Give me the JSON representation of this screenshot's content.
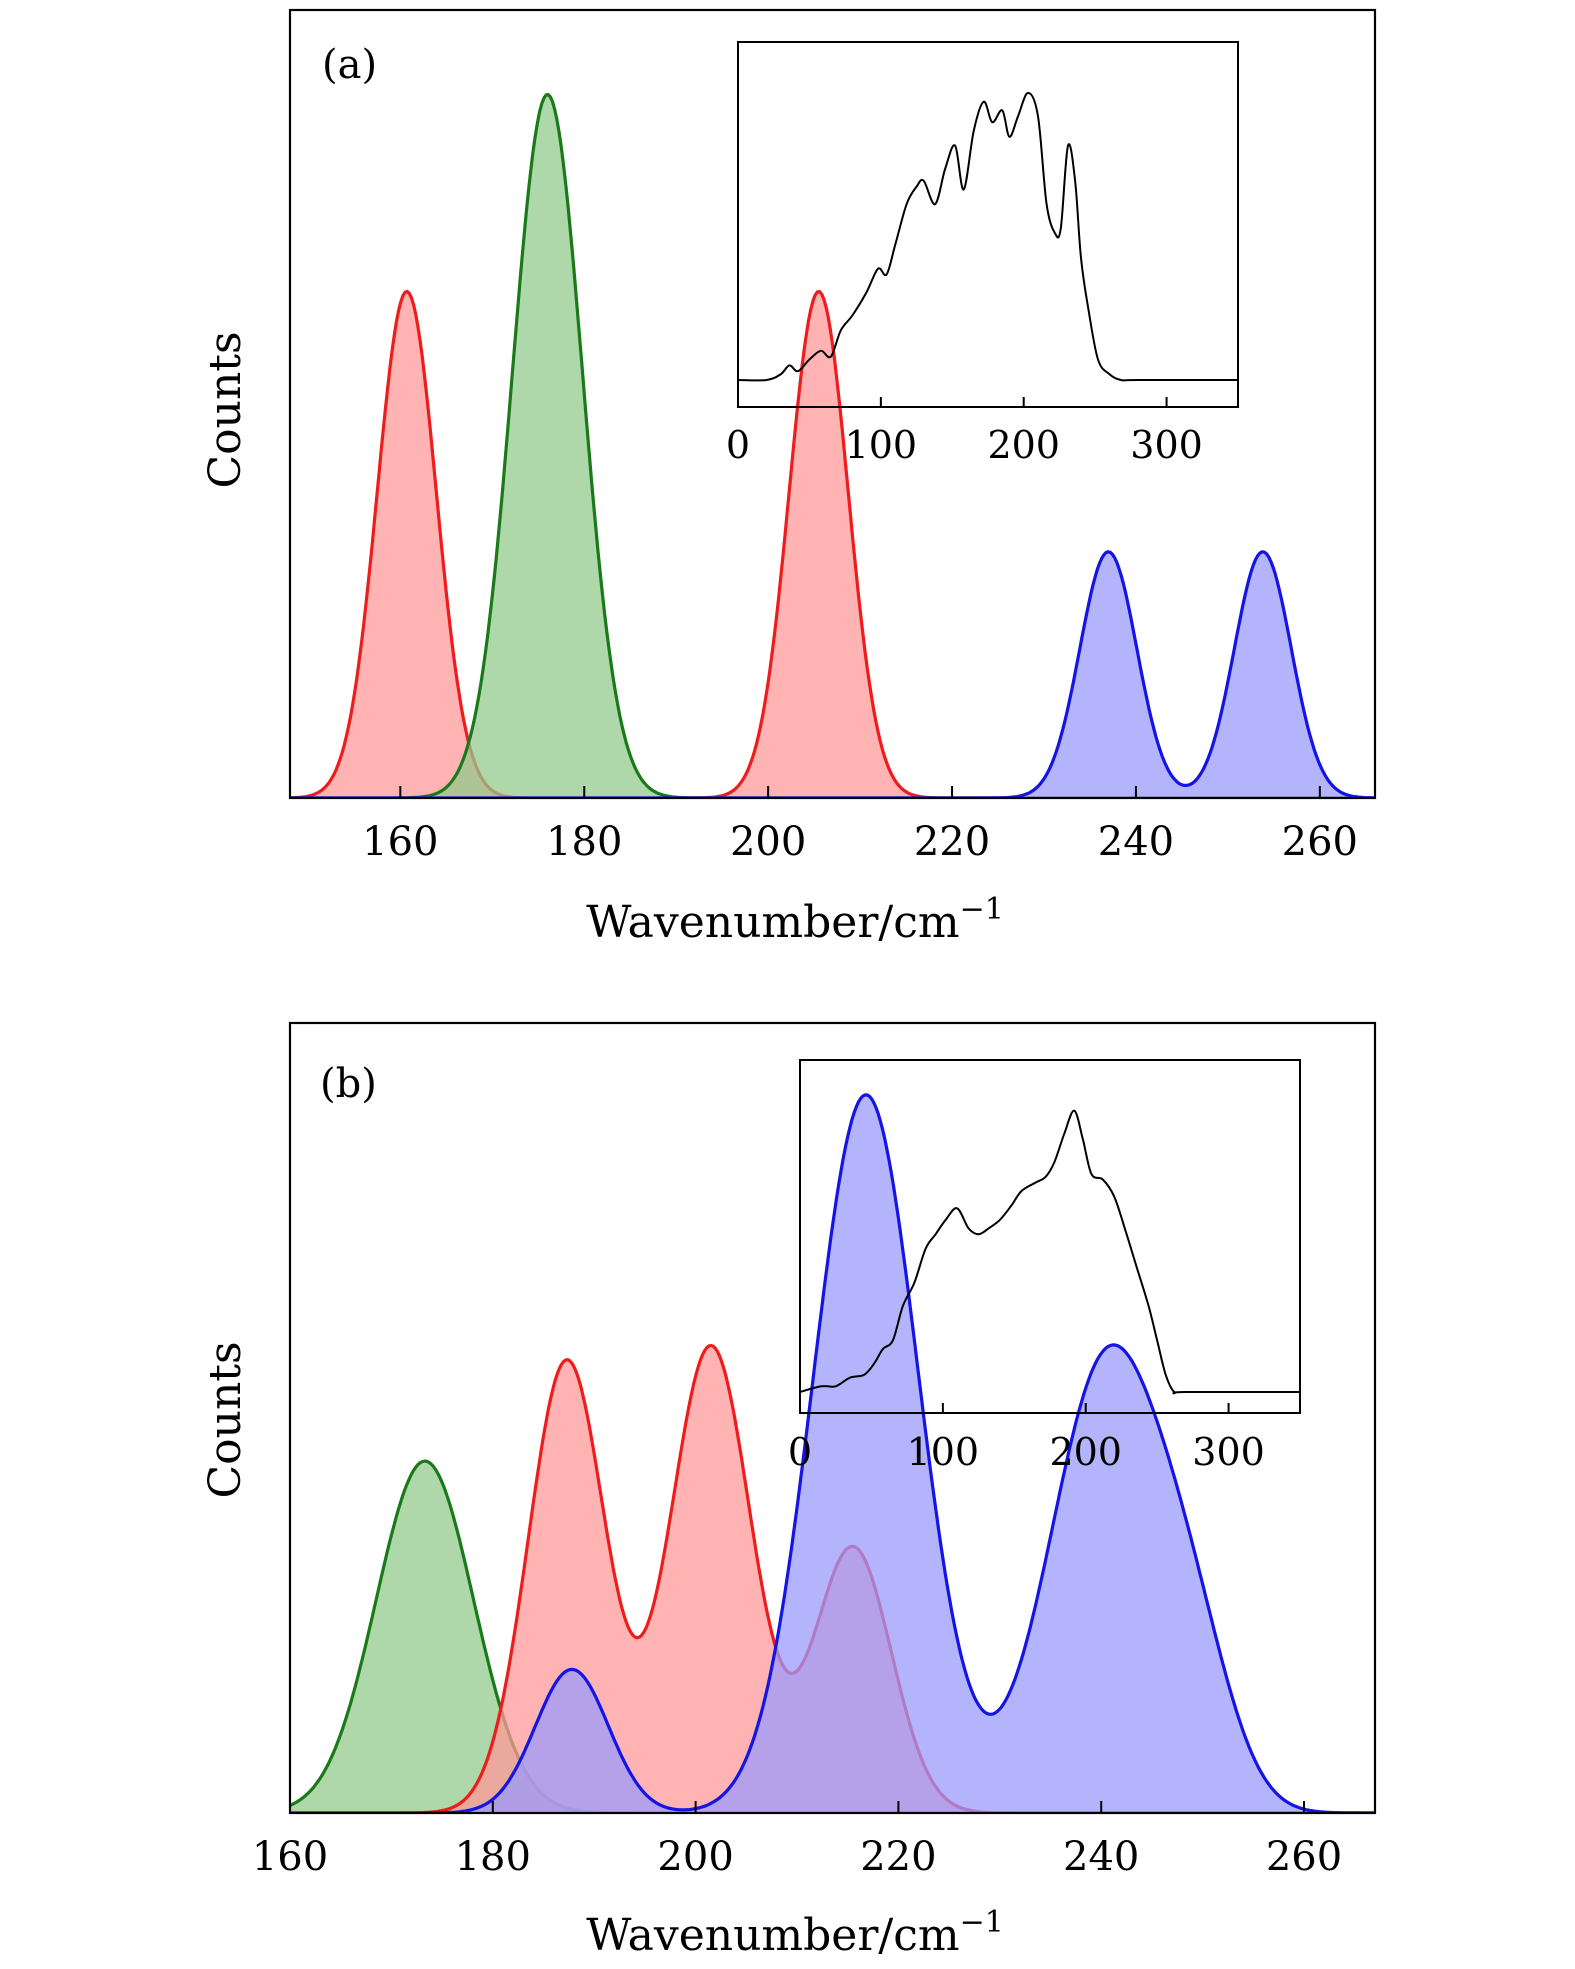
{
  "colors": {
    "red": "#ee1c1c",
    "red_fill": "#ff9a9a",
    "green": "#1a7a1a",
    "green_fill": "#93ca8e",
    "blue": "#1414e6",
    "blue_fill": "#9b9bfb",
    "axis": "#000000"
  },
  "chart_data": [
    {
      "type": "area",
      "panel_label": "(a)",
      "xlabel_main": "Wavenumber/cm",
      "xlabel_sup": "−1",
      "ylabel": "Counts",
      "xlim": [
        148,
        266
      ],
      "ylim": [
        0,
        1.12
      ],
      "xticks": [
        160,
        180,
        200,
        220,
        240,
        260
      ],
      "series": [
        {
          "color": "red",
          "peaks": [
            {
              "center": 160.7,
              "height": 0.72,
              "sigma": 3.2
            },
            {
              "center": 205.5,
              "height": 0.72,
              "sigma": 3.2
            }
          ]
        },
        {
          "color": "green",
          "peaks": [
            {
              "center": 176.0,
              "height": 1.0,
              "sigma": 3.8
            }
          ]
        },
        {
          "color": "blue",
          "peaks": [
            {
              "center": 237.0,
              "height": 0.35,
              "sigma": 3.1
            },
            {
              "center": 253.8,
              "height": 0.35,
              "sigma": 3.1
            }
          ]
        }
      ],
      "inset": {
        "type": "line",
        "xlim": [
          0,
          350
        ],
        "ylim": [
          0,
          1.1
        ],
        "xticks": [
          0,
          100,
          200,
          300
        ],
        "x": [
          0,
          20,
          30,
          36,
          42,
          50,
          58,
          65,
          72,
          80,
          90,
          98,
          104,
          110,
          118,
          125,
          130,
          138,
          145,
          152,
          158,
          165,
          172,
          178,
          185,
          190,
          196,
          203,
          210,
          216,
          222,
          226,
          231,
          236,
          240,
          245,
          252,
          260,
          268,
          280,
          350
        ],
        "y": [
          0.0,
          0.0,
          0.02,
          0.05,
          0.03,
          0.07,
          0.1,
          0.08,
          0.17,
          0.22,
          0.3,
          0.38,
          0.36,
          0.46,
          0.6,
          0.66,
          0.68,
          0.6,
          0.72,
          0.8,
          0.65,
          0.85,
          0.95,
          0.88,
          0.92,
          0.83,
          0.9,
          0.98,
          0.9,
          0.6,
          0.5,
          0.52,
          0.8,
          0.68,
          0.42,
          0.25,
          0.07,
          0.02,
          0.0,
          0.0,
          0.0
        ]
      }
    },
    {
      "type": "area",
      "panel_label": "(b)",
      "xlabel_main": "Wavenumber/cm",
      "xlabel_sup": "−1",
      "ylabel": "Counts",
      "xlim": [
        160,
        267
      ],
      "ylim": [
        0,
        1.1
      ],
      "xticks": [
        160,
        180,
        200,
        220,
        240,
        260
      ],
      "series": [
        {
          "color": "green",
          "peaks": [
            {
              "center": 173.3,
              "height": 0.49,
              "sigma": 4.8
            }
          ]
        },
        {
          "color": "red",
          "peaks": [
            {
              "center": 187.3,
              "height": 0.63,
              "sigma": 3.8
            },
            {
              "center": 201.5,
              "height": 0.65,
              "sigma": 4.0
            },
            {
              "center": 215.5,
              "height": 0.37,
              "sigma": 3.8
            }
          ]
        },
        {
          "color": "blue",
          "peaks": [
            {
              "center": 187.8,
              "height": 0.2,
              "sigma": 3.6
            },
            {
              "center": 216.8,
              "height": 1.0,
              "sigma": 5.2
            },
            {
              "center": 240.6,
              "height": 0.63,
              "sigma": 5.6
            },
            {
              "center": 249.0,
              "height": 0.17,
              "sigma": 4.0
            }
          ]
        }
      ],
      "inset": {
        "type": "line",
        "xlim": [
          0,
          350
        ],
        "ylim": [
          0,
          1.1
        ],
        "xticks": [
          0,
          100,
          200,
          300
        ],
        "x": [
          0,
          15,
          25,
          35,
          45,
          52,
          58,
          65,
          72,
          80,
          88,
          95,
          102,
          110,
          118,
          125,
          132,
          140,
          148,
          155,
          165,
          172,
          178,
          185,
          192,
          198,
          204,
          212,
          220,
          228,
          236,
          244,
          250,
          256,
          262,
          270,
          350
        ],
        "y": [
          0.0,
          0.02,
          0.02,
          0.05,
          0.06,
          0.1,
          0.15,
          0.18,
          0.3,
          0.38,
          0.5,
          0.55,
          0.6,
          0.64,
          0.57,
          0.55,
          0.57,
          0.6,
          0.65,
          0.7,
          0.73,
          0.75,
          0.8,
          0.9,
          0.98,
          0.88,
          0.76,
          0.74,
          0.68,
          0.56,
          0.43,
          0.3,
          0.18,
          0.06,
          0.0,
          0.0,
          0.0
        ]
      }
    }
  ]
}
